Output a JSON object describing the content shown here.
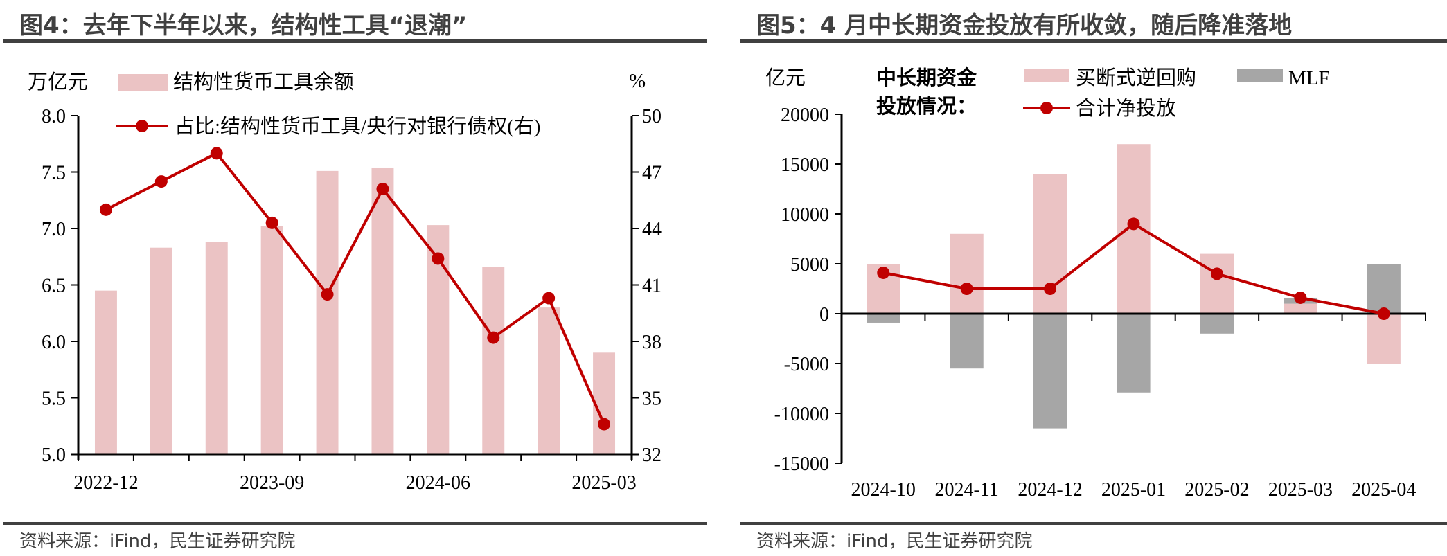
{
  "colors": {
    "bar_pink": "#ebc3c4",
    "bar_gray": "#a6a6a6",
    "line_red": "#c00000",
    "title": "#404040"
  },
  "chart_data": [
    {
      "type": "bar+line",
      "title": "图4：去年下半年以来，结构性工具“退潮”",
      "source": "资料来源：iFind，民生证券研究院",
      "ylabel_left": "万亿元",
      "ylabel_right": "%",
      "ylim_left": [
        5.0,
        8.0
      ],
      "yticks_left": [
        "5.0",
        "5.5",
        "6.0",
        "6.5",
        "7.0",
        "7.5",
        "8.0"
      ],
      "ylim_right": [
        32,
        50
      ],
      "yticks_right": [
        "32",
        "35",
        "38",
        "41",
        "44",
        "47",
        "50"
      ],
      "xtick_labels": [
        "2022-12",
        "2023-09",
        "2024-06",
        "2025-03"
      ],
      "xtick_label_index": [
        0,
        3,
        6,
        9
      ],
      "series": [
        {
          "name": "结构性货币工具余额",
          "type": "bar",
          "axis": "left",
          "values": [
            6.45,
            6.83,
            6.88,
            7.02,
            7.51,
            7.54,
            7.03,
            6.66,
            6.3,
            5.9
          ]
        },
        {
          "name": "占比:结构性货币工具/央行对银行债权(右)",
          "type": "line",
          "axis": "right",
          "values": [
            45.0,
            46.5,
            48.0,
            44.3,
            40.5,
            46.1,
            42.4,
            38.2,
            40.3,
            33.6
          ]
        }
      ],
      "legend": "top"
    },
    {
      "type": "bar+line",
      "title": "图5：4 月中长期资金投放有所收敛，随后降准落地",
      "source": "资料来源：iFind，民生证券研究院",
      "ylabel": "亿元",
      "legend_title": [
        "中长期资金",
        "投放情况："
      ],
      "ylim": [
        -15000,
        20000
      ],
      "yticks": [
        "-15000",
        "-10000",
        "-5000",
        "0",
        "5000",
        "10000",
        "15000",
        "20000"
      ],
      "categories": [
        "2024-10",
        "2024-11",
        "2024-12",
        "2025-01",
        "2025-02",
        "2025-03",
        "2025-04"
      ],
      "series": [
        {
          "name": "买断式逆回购",
          "type": "bar",
          "stacked": true,
          "values": [
            5000,
            8000,
            14000,
            17000,
            6000,
            1000,
            -5000
          ]
        },
        {
          "name": "MLF",
          "type": "bar",
          "stacked": true,
          "values": [
            -900,
            -5500,
            -11500,
            -7900,
            -2000,
            600,
            5000
          ]
        },
        {
          "name": "合计净投放",
          "type": "line",
          "values": [
            4100,
            2500,
            2500,
            9000,
            4000,
            1600,
            0
          ]
        }
      ],
      "legend": "top"
    }
  ]
}
